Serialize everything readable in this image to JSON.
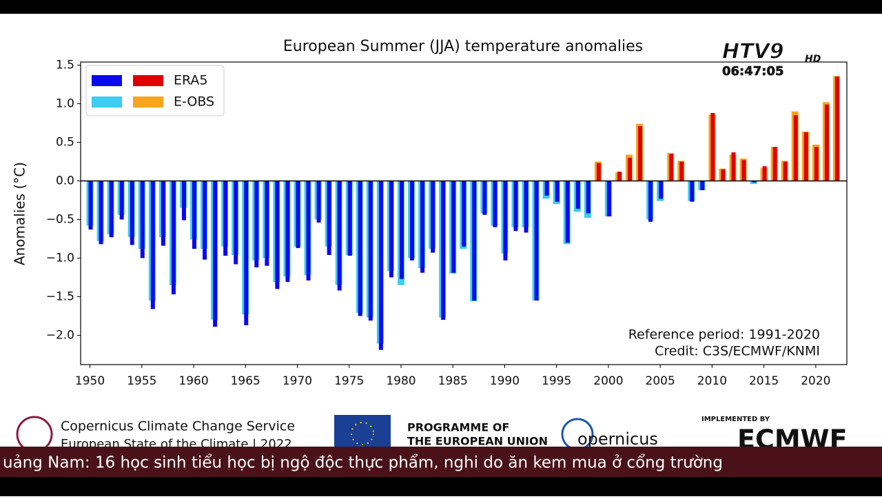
{
  "chart_data": {
    "type": "bar",
    "title": "European Summer (JJA) temperature anomalies",
    "y_label": "Anomalies (°C)",
    "annotations": [
      "Reference period: 1991-2020",
      "Credit: C3S/ECMWF/KNMI"
    ],
    "x": [
      1950,
      1951,
      1952,
      1953,
      1954,
      1955,
      1956,
      1957,
      1958,
      1959,
      1960,
      1961,
      1962,
      1963,
      1964,
      1965,
      1966,
      1967,
      1968,
      1969,
      1970,
      1971,
      1972,
      1973,
      1974,
      1975,
      1976,
      1977,
      1978,
      1979,
      1980,
      1981,
      1982,
      1983,
      1984,
      1985,
      1986,
      1987,
      1988,
      1989,
      1990,
      1991,
      1992,
      1993,
      1994,
      1995,
      1996,
      1997,
      1998,
      1999,
      2000,
      2001,
      2002,
      2003,
      2004,
      2005,
      2006,
      2007,
      2008,
      2009,
      2010,
      2011,
      2012,
      2013,
      2014,
      2015,
      2016,
      2017,
      2018,
      2019,
      2020,
      2021,
      2022
    ],
    "series": [
      {
        "name": "ERA5",
        "color": "#0a0aee",
        "negative_color": "#0a0aee",
        "positive_color": "#e00000",
        "values": [
          -0.63,
          -0.82,
          -0.73,
          -0.5,
          -0.83,
          -1.0,
          -1.66,
          -0.84,
          -1.47,
          -0.51,
          -0.88,
          -1.02,
          -1.89,
          -0.97,
          -1.08,
          -1.87,
          -1.12,
          -1.1,
          -1.4,
          -1.31,
          -0.87,
          -1.29,
          -0.54,
          -0.96,
          -1.42,
          -0.97,
          -1.75,
          -1.81,
          -2.19,
          -1.25,
          -1.27,
          -1.03,
          -1.19,
          -0.93,
          -1.8,
          -1.19,
          -0.85,
          -1.55,
          -0.44,
          -0.6,
          -1.03,
          -0.65,
          -0.67,
          -1.55,
          -0.19,
          -0.27,
          -0.8,
          -0.36,
          -0.42,
          0.23,
          -0.46,
          0.12,
          0.3,
          0.71,
          -0.53,
          -0.23,
          0.35,
          0.25,
          -0.27,
          -0.12,
          0.88,
          0.15,
          0.37,
          0.27,
          -0.02,
          0.19,
          0.44,
          0.25,
          0.85,
          0.63,
          0.44,
          0.99,
          1.35
        ]
      },
      {
        "name": "E-OBS",
        "color": "#3ccdf0",
        "negative_color": "#3ccdf0",
        "positive_color": "#f7a51f",
        "values": [
          -0.58,
          -0.78,
          -0.69,
          -0.44,
          -0.73,
          -0.88,
          -1.55,
          -0.73,
          -1.35,
          -0.35,
          -0.76,
          -0.88,
          -1.8,
          -0.85,
          -0.96,
          -1.73,
          -1.03,
          -1.0,
          -1.31,
          -1.24,
          -0.85,
          -1.22,
          -0.5,
          -0.85,
          -1.35,
          -0.96,
          -1.71,
          -1.77,
          -2.11,
          -1.17,
          -1.35,
          -1.0,
          -1.13,
          -0.88,
          -1.77,
          -1.2,
          -0.88,
          -1.56,
          -0.42,
          -0.58,
          -0.94,
          -0.6,
          -0.6,
          -1.55,
          -0.23,
          -0.3,
          -0.82,
          -0.4,
          -0.48,
          0.25,
          -0.46,
          0.11,
          0.34,
          0.74,
          -0.5,
          -0.26,
          0.36,
          0.26,
          -0.26,
          -0.12,
          0.86,
          0.16,
          0.34,
          0.29,
          -0.04,
          0.17,
          0.44,
          0.26,
          0.9,
          0.64,
          0.47,
          1.02,
          1.36
        ]
      }
    ],
    "xlim": [
      1949.1,
      2023.0
    ],
    "xticks": [
      1950,
      1955,
      1960,
      1965,
      1970,
      1975,
      1980,
      1985,
      1990,
      1995,
      2000,
      2005,
      2010,
      2015,
      2020
    ],
    "ylim": [
      -2.38,
      1.54
    ],
    "yticks": [
      {
        "value": -2,
        "label": "−2.0"
      },
      {
        "value": -1.5,
        "label": "−1.5"
      },
      {
        "value": -1,
        "label": "−1.0"
      },
      {
        "value": -0.5,
        "label": "−0.5"
      },
      {
        "value": 0,
        "label": "0.0"
      },
      {
        "value": 0.5,
        "label": "0.5"
      },
      {
        "value": 1,
        "label": "1.0"
      },
      {
        "value": 1.5,
        "label": "1.5"
      }
    ],
    "grid": false,
    "legend": "upper left"
  },
  "broadcast": {
    "channel": "HTV9",
    "channel_hd": "HD",
    "clock": "06:47:05",
    "ticker": "uảng Nam: 16 học sinh tiểu học bị ngộ độc thực phẩm, nghi do ăn kem mua ở cổng trường"
  },
  "footer": {
    "c3s": "Copernicus Climate Change Service",
    "c3s_sub": "European State of the Climate | 2022",
    "eu_1": "PROGRAMME OF",
    "eu_2": "THE EUROPEAN UNION",
    "copernicus": "opernicus",
    "implemented": "IMPLEMENTED BY",
    "ecmwf": "ECMWF"
  }
}
